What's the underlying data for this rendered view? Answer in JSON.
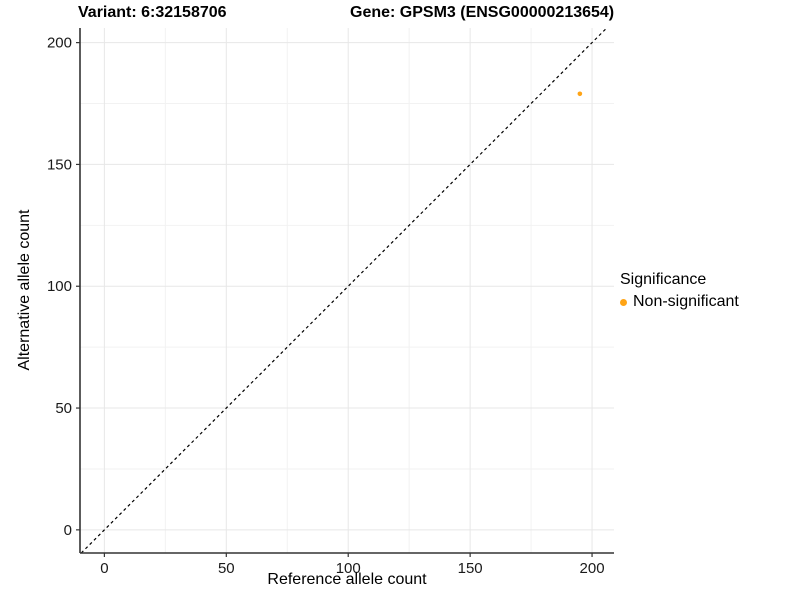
{
  "chart_data": {
    "type": "scatter",
    "titles": {
      "left": "Variant: 6:32158706",
      "right": "Gene: GPSM3 (ENSG00000213654)"
    },
    "xlabel": "Reference allele count",
    "ylabel": "Alternative allele count",
    "xlim": [
      -10,
      209
    ],
    "ylim": [
      -9.5,
      206
    ],
    "x_ticks": [
      0,
      50,
      100,
      150,
      200
    ],
    "y_ticks": [
      0,
      50,
      100,
      150,
      200
    ],
    "x_minor_gridlines": [
      25,
      75,
      125,
      175
    ],
    "y_minor_gridlines": [
      25,
      75,
      125,
      175
    ],
    "grid": "major+minor",
    "identity_line": {
      "type": "abline",
      "slope": 1,
      "intercept": 0,
      "style": "dashed",
      "color": "#000000"
    },
    "series": [
      {
        "name": "Non-significant",
        "color": "#FFA416",
        "points": [
          [
            195,
            179
          ]
        ]
      }
    ],
    "legend": {
      "title": "Significance",
      "position": "right",
      "items": [
        {
          "label": "Non-significant",
          "color": "#FFA416"
        }
      ]
    }
  },
  "style": {
    "grid_major_color": "#E7E7E7",
    "grid_minor_color": "#F2F2F2",
    "axis_line_color": "#333333",
    "tick_mark_color": "#333333",
    "tick_label_color": "#1a1a1a",
    "background_color": "#FFFFFF"
  }
}
